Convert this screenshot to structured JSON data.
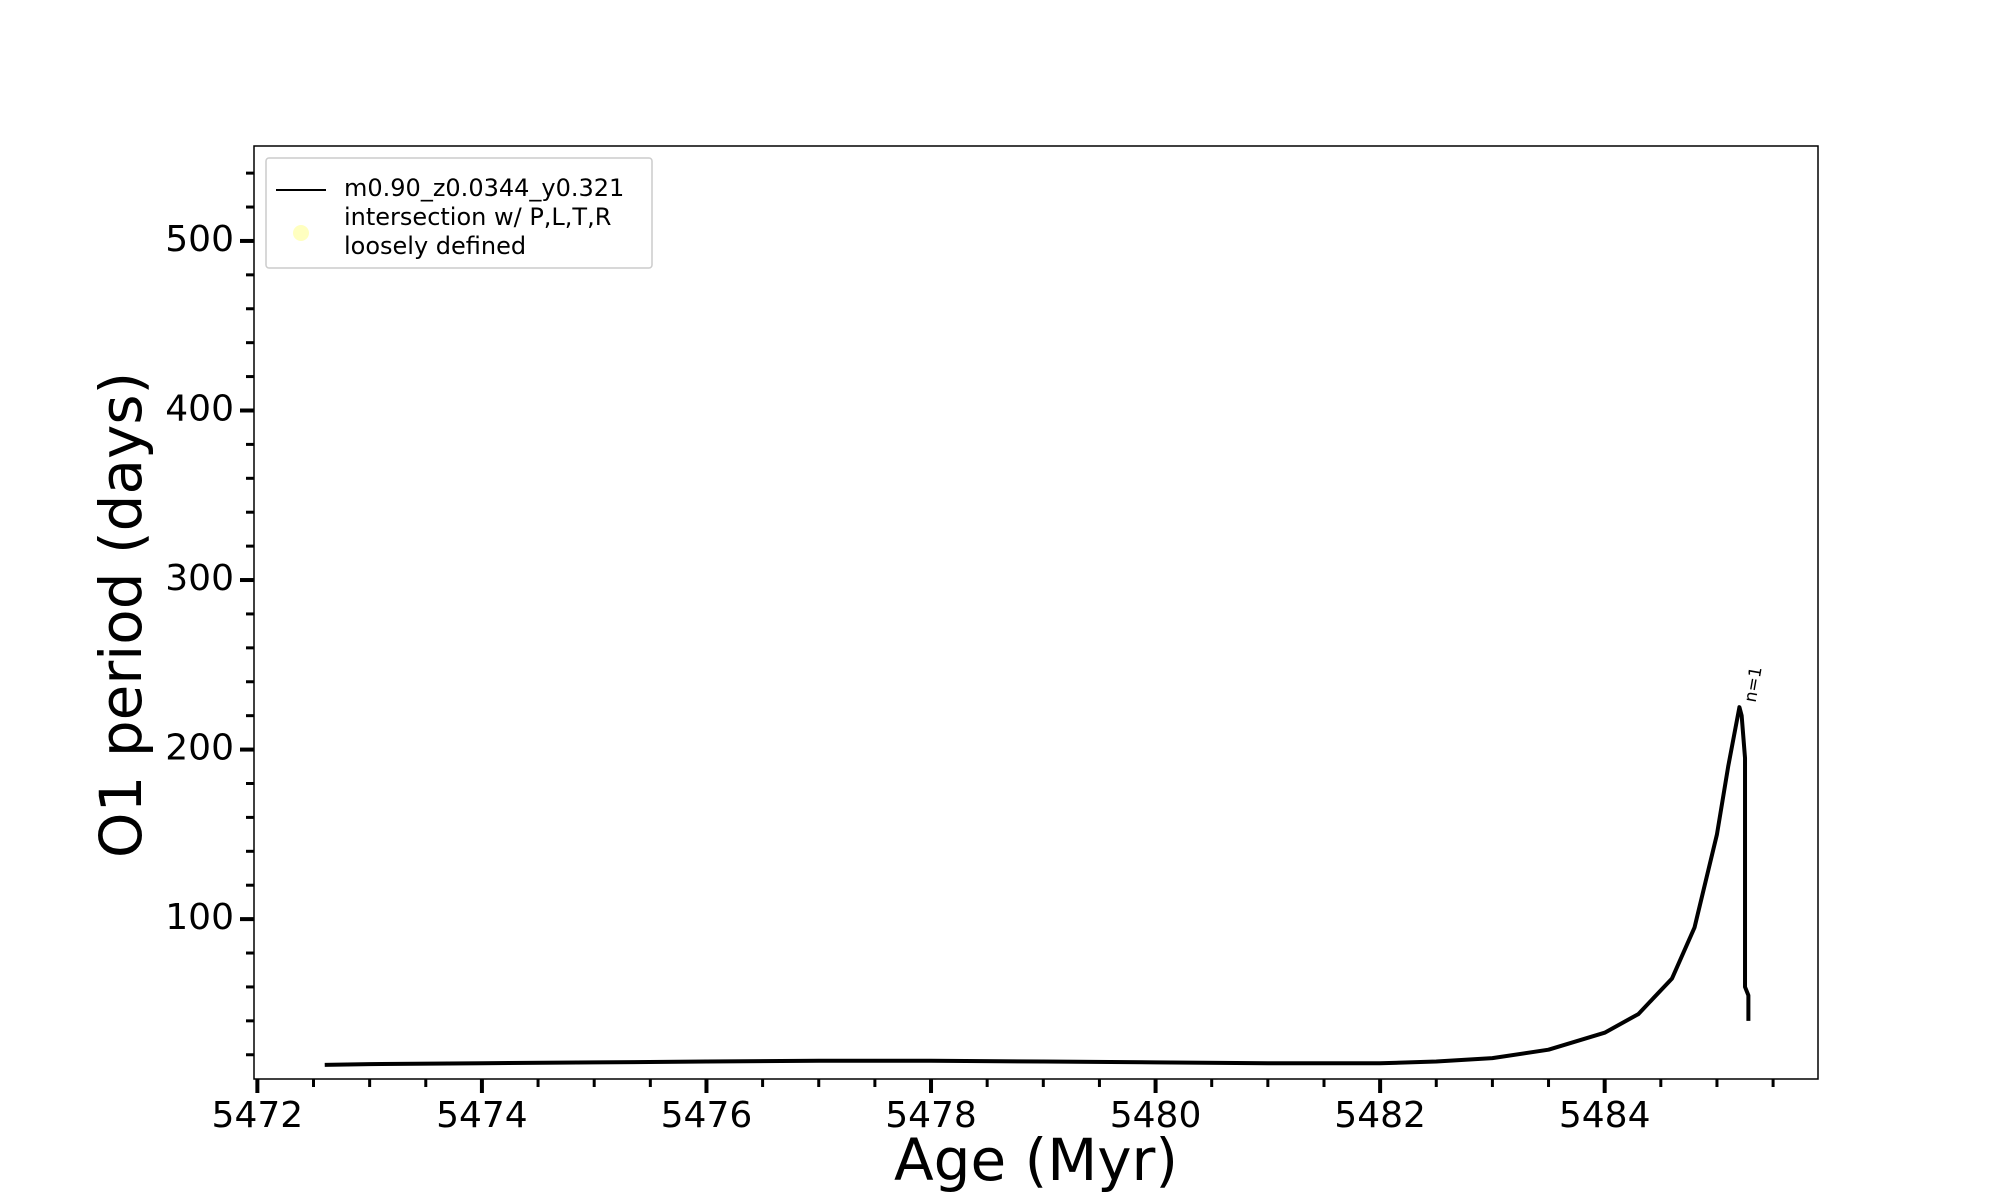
{
  "chart_data": {
    "type": "line",
    "xlabel": "Age (Myr)",
    "ylabel": "O1 period (days)",
    "xlim": [
      5471.97,
      5485.9
    ],
    "ylim": [
      5.7,
      556
    ],
    "xticks": [
      5472,
      5474,
      5476,
      5478,
      5480,
      5482,
      5484
    ],
    "yticks": [
      100,
      200,
      300,
      400,
      500
    ],
    "xminorticks": [
      5472.5,
      5473,
      5473.5,
      5474.5,
      5475,
      5475.5,
      5476.5,
      5477,
      5477.5,
      5478.5,
      5479,
      5479.5,
      5480.5,
      5481,
      5481.5,
      5482.5,
      5483,
      5483.5,
      5484.5,
      5485,
      5485.5
    ],
    "yminorticks": [
      20,
      40,
      60,
      80,
      120,
      140,
      160,
      180,
      220,
      240,
      260,
      280,
      320,
      340,
      360,
      380,
      420,
      440,
      460,
      480,
      520,
      540
    ],
    "legend": "upper left",
    "series": [
      {
        "name": "m0.90_z0.0344_y0.321",
        "color": "#000000",
        "x": [
          5472.6,
          5473,
          5474,
          5475,
          5476,
          5477,
          5478,
          5479,
          5480,
          5481,
          5482,
          5482.5,
          5483,
          5483.5,
          5484,
          5484.3,
          5484.6,
          5484.8,
          5485,
          5485.1,
          5485.2,
          5485.22,
          5485.25,
          5485.25,
          5485.28,
          5485.28
        ],
        "values": [
          14,
          14.5,
          15,
          15.5,
          16,
          16.5,
          16.5,
          16,
          15.5,
          15,
          15,
          16,
          18,
          23,
          33,
          44,
          65,
          95,
          150,
          190,
          225,
          220,
          195,
          60,
          55,
          40
        ]
      },
      {
        "name": "intersection w/ P,L,T,R\nloosely defined",
        "color": "#ffffc0",
        "x": [],
        "values": []
      }
    ],
    "annotations": [
      {
        "text": "n=1",
        "x": 5485.3,
        "y": 228
      }
    ]
  }
}
